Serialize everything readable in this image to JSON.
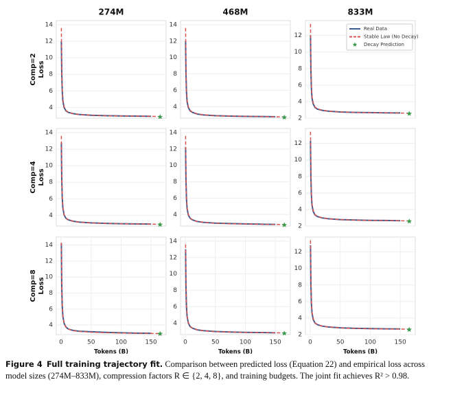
{
  "chart_data": [
    {
      "type": "line",
      "title": "274M",
      "ylabel": [
        "Comp=2",
        "Loss"
      ],
      "xlim": [
        -8,
        175
      ],
      "ylim": [
        2.7,
        14.5
      ],
      "yticks": [
        4,
        6,
        8,
        10,
        12,
        14
      ],
      "grid": true,
      "x": [
        0.5,
        1,
        2,
        3,
        5,
        8,
        12,
        20,
        30,
        50,
        75,
        100,
        125,
        150,
        165
      ],
      "series": [
        {
          "color": "#3a5a92",
          "style": "solid",
          "values": [
            12,
            8.5,
            6,
            4.8,
            4,
            3.6,
            3.4,
            3.25,
            3.15,
            3.05,
            3,
            2.97,
            2.95,
            2.93,
            null
          ]
        },
        {
          "color": "#d9534f",
          "style": "dashed",
          "values": [
            13.6,
            9,
            6.2,
            5,
            4.1,
            3.65,
            3.42,
            3.25,
            3.15,
            3.05,
            3,
            2.97,
            2.94,
            2.92,
            2.9
          ]
        },
        {
          "color": "#3a9b4a",
          "style": "star",
          "values": [
            null,
            null,
            null,
            null,
            null,
            null,
            null,
            null,
            null,
            null,
            null,
            null,
            null,
            null,
            2.85
          ]
        }
      ]
    },
    {
      "type": "line",
      "title": "468M",
      "xlim": [
        -8,
        175
      ],
      "ylim": [
        2.6,
        14.5
      ],
      "yticks": [
        4,
        6,
        8,
        10,
        12,
        14
      ],
      "grid": true,
      "x": [
        0.5,
        1,
        2,
        3,
        5,
        8,
        12,
        20,
        30,
        50,
        75,
        100,
        125,
        150,
        165
      ],
      "series": [
        {
          "color": "#3a5a92",
          "style": "solid",
          "values": [
            12,
            8.3,
            5.8,
            4.6,
            3.9,
            3.5,
            3.3,
            3.1,
            3,
            2.9,
            2.85,
            2.82,
            2.8,
            2.78,
            null
          ]
        },
        {
          "color": "#d9534f",
          "style": "dashed",
          "values": [
            13.6,
            8.8,
            6,
            4.8,
            4,
            3.55,
            3.32,
            3.12,
            3.01,
            2.9,
            2.85,
            2.82,
            2.8,
            2.77,
            2.75
          ]
        },
        {
          "color": "#3a9b4a",
          "style": "star",
          "values": [
            null,
            null,
            null,
            null,
            null,
            null,
            null,
            null,
            null,
            null,
            null,
            null,
            null,
            null,
            2.7
          ]
        }
      ]
    },
    {
      "type": "line",
      "title": "833M",
      "xlim": [
        -8,
        175
      ],
      "ylim": [
        2,
        13.8
      ],
      "yticks": [
        2,
        4,
        6,
        8,
        10,
        12
      ],
      "grid": true,
      "legend": "upper right",
      "x": [
        0.5,
        1,
        2,
        3,
        5,
        8,
        12,
        20,
        30,
        50,
        75,
        100,
        125,
        150,
        165
      ],
      "series": [
        {
          "name": "Real Data",
          "color": "#3a5a92",
          "style": "solid",
          "values": [
            12,
            8,
            5.6,
            4.4,
            3.7,
            3.3,
            3.1,
            2.95,
            2.85,
            2.75,
            2.7,
            2.67,
            2.65,
            2.63,
            null
          ]
        },
        {
          "name": "Stable Law (No Decay)",
          "color": "#d9534f",
          "style": "dashed",
          "values": [
            13.4,
            8.6,
            5.8,
            4.6,
            3.8,
            3.35,
            3.12,
            2.96,
            2.86,
            2.75,
            2.7,
            2.67,
            2.64,
            2.62,
            2.6
          ]
        },
        {
          "name": "Decay Prediction",
          "color": "#3a9b4a",
          "style": "star",
          "values": [
            null,
            null,
            null,
            null,
            null,
            null,
            null,
            null,
            null,
            null,
            null,
            null,
            null,
            null,
            2.55
          ]
        }
      ]
    },
    {
      "type": "line",
      "ylabel": [
        "Comp=4",
        "Loss"
      ],
      "xlim": [
        -8,
        175
      ],
      "ylim": [
        2.7,
        14.5
      ],
      "yticks": [
        4,
        6,
        8,
        10,
        12,
        14
      ],
      "grid": true,
      "x": [
        0.5,
        1,
        2,
        3,
        5,
        8,
        12,
        20,
        30,
        50,
        75,
        100,
        125,
        150,
        165
      ],
      "series": [
        {
          "color": "#3a5a92",
          "style": "solid",
          "values": [
            12.8,
            8.7,
            6.1,
            4.9,
            4.05,
            3.65,
            3.45,
            3.28,
            3.18,
            3.08,
            3.02,
            2.98,
            2.96,
            2.94,
            null
          ]
        },
        {
          "color": "#d9534f",
          "style": "dashed",
          "values": [
            13.6,
            9.1,
            6.3,
            5,
            4.1,
            3.68,
            3.45,
            3.28,
            3.17,
            3.07,
            3.01,
            2.98,
            2.95,
            2.93,
            2.91
          ]
        },
        {
          "color": "#3a9b4a",
          "style": "star",
          "values": [
            null,
            null,
            null,
            null,
            null,
            null,
            null,
            null,
            null,
            null,
            null,
            null,
            null,
            null,
            2.87
          ]
        }
      ]
    },
    {
      "type": "line",
      "xlim": [
        -8,
        175
      ],
      "ylim": [
        2.6,
        14.5
      ],
      "yticks": [
        4,
        6,
        8,
        10,
        12,
        14
      ],
      "grid": true,
      "x": [
        0.5,
        1,
        2,
        3,
        5,
        8,
        12,
        20,
        30,
        50,
        75,
        100,
        125,
        150,
        165
      ],
      "series": [
        {
          "color": "#3a5a92",
          "style": "solid",
          "values": [
            12.2,
            8.4,
            5.9,
            4.7,
            3.95,
            3.55,
            3.35,
            3.15,
            3.05,
            2.95,
            2.9,
            2.86,
            2.83,
            2.8,
            null
          ]
        },
        {
          "color": "#d9534f",
          "style": "dashed",
          "values": [
            13.6,
            8.9,
            6.1,
            4.85,
            4.02,
            3.58,
            3.36,
            3.16,
            3.05,
            2.94,
            2.88,
            2.85,
            2.82,
            2.8,
            2.78
          ]
        },
        {
          "color": "#3a9b4a",
          "style": "star",
          "values": [
            null,
            null,
            null,
            null,
            null,
            null,
            null,
            null,
            null,
            null,
            null,
            null,
            null,
            null,
            2.73
          ]
        }
      ]
    },
    {
      "type": "line",
      "xlim": [
        -8,
        175
      ],
      "ylim": [
        2,
        13.8
      ],
      "yticks": [
        2,
        4,
        6,
        8,
        10,
        12
      ],
      "grid": true,
      "x": [
        0.5,
        1,
        2,
        3,
        5,
        8,
        12,
        20,
        30,
        50,
        75,
        100,
        125,
        150,
        165
      ],
      "series": [
        {
          "color": "#3a5a92",
          "style": "solid",
          "values": [
            12.3,
            8.1,
            5.7,
            4.5,
            3.75,
            3.35,
            3.15,
            2.98,
            2.88,
            2.78,
            2.72,
            2.69,
            2.67,
            2.65,
            null
          ]
        },
        {
          "color": "#d9534f",
          "style": "dashed",
          "values": [
            13.4,
            8.7,
            5.9,
            4.65,
            3.85,
            3.38,
            3.16,
            2.99,
            2.88,
            2.77,
            2.72,
            2.68,
            2.66,
            2.64,
            2.62
          ]
        },
        {
          "color": "#3a9b4a",
          "style": "star",
          "values": [
            null,
            null,
            null,
            null,
            null,
            null,
            null,
            null,
            null,
            null,
            null,
            null,
            null,
            null,
            2.57
          ]
        }
      ]
    },
    {
      "type": "line",
      "ylabel": [
        "Comp=8",
        "Loss"
      ],
      "xlabel": "Tokens (B)",
      "xlim": [
        -8,
        175
      ],
      "ylim": [
        2.8,
        15
      ],
      "yticks": [
        4,
        6,
        8,
        10,
        12,
        14
      ],
      "xticks": [
        0,
        50,
        100,
        150
      ],
      "grid": true,
      "x": [
        0.5,
        1,
        2,
        3,
        5,
        8,
        12,
        20,
        30,
        50,
        75,
        100,
        125,
        150,
        165
      ],
      "series": [
        {
          "color": "#3a5a92",
          "style": "solid",
          "values": [
            14.2,
            9.2,
            6.4,
            5.1,
            4.2,
            3.75,
            3.5,
            3.32,
            3.22,
            3.15,
            3.08,
            3.02,
            2.98,
            2.96,
            null
          ]
        },
        {
          "color": "#d9534f",
          "style": "dashed",
          "values": [
            14.3,
            9.4,
            6.5,
            5.15,
            4.2,
            3.72,
            3.48,
            3.3,
            3.2,
            3.1,
            3.04,
            3,
            2.97,
            2.95,
            2.93
          ]
        },
        {
          "color": "#3a9b4a",
          "style": "star",
          "values": [
            null,
            null,
            null,
            null,
            null,
            null,
            null,
            null,
            null,
            null,
            null,
            null,
            null,
            null,
            2.9
          ]
        }
      ]
    },
    {
      "type": "line",
      "xlabel": "Tokens (B)",
      "xlim": [
        -8,
        175
      ],
      "ylim": [
        2.6,
        14.5
      ],
      "yticks": [
        4,
        6,
        8,
        10,
        12,
        14
      ],
      "xticks": [
        0,
        50,
        100,
        150
      ],
      "grid": true,
      "x": [
        0.5,
        1,
        2,
        3,
        5,
        8,
        12,
        20,
        30,
        50,
        75,
        100,
        125,
        150,
        165
      ],
      "series": [
        {
          "color": "#3a5a92",
          "style": "solid",
          "values": [
            13,
            8.6,
            6,
            4.8,
            4,
            3.58,
            3.38,
            3.18,
            3.08,
            2.98,
            2.92,
            2.88,
            2.85,
            2.82,
            null
          ]
        },
        {
          "color": "#d9534f",
          "style": "dashed",
          "values": [
            13.6,
            9,
            6.2,
            4.9,
            4.05,
            3.6,
            3.38,
            3.18,
            3.07,
            2.96,
            2.9,
            2.87,
            2.84,
            2.82,
            2.8
          ]
        },
        {
          "color": "#3a9b4a",
          "style": "star",
          "values": [
            null,
            null,
            null,
            null,
            null,
            null,
            null,
            null,
            null,
            null,
            null,
            null,
            null,
            null,
            2.75
          ]
        }
      ]
    },
    {
      "type": "line",
      "xlabel": "Tokens (B)",
      "xlim": [
        -8,
        175
      ],
      "ylim": [
        2,
        13.8
      ],
      "yticks": [
        2,
        4,
        6,
        8,
        10,
        12
      ],
      "xticks": [
        0,
        50,
        100,
        150
      ],
      "grid": true,
      "x": [
        0.5,
        1,
        2,
        3,
        5,
        8,
        12,
        20,
        30,
        50,
        75,
        100,
        125,
        150,
        165
      ],
      "series": [
        {
          "color": "#3a5a92",
          "style": "solid",
          "values": [
            12.8,
            8.3,
            5.8,
            4.6,
            3.8,
            3.4,
            3.2,
            3.02,
            2.92,
            2.82,
            2.76,
            2.72,
            2.7,
            2.68,
            null
          ]
        },
        {
          "color": "#d9534f",
          "style": "dashed",
          "values": [
            13.4,
            8.8,
            6,
            4.7,
            3.9,
            3.42,
            3.2,
            3.03,
            2.92,
            2.81,
            2.75,
            2.71,
            2.69,
            2.67,
            2.65
          ]
        },
        {
          "color": "#3a9b4a",
          "style": "star",
          "values": [
            null,
            null,
            null,
            null,
            null,
            null,
            null,
            null,
            null,
            null,
            null,
            null,
            null,
            null,
            2.6
          ]
        }
      ]
    }
  ],
  "caption": {
    "label": "Figure 4",
    "title": "Full training trajectory fit.",
    "text": "Comparison between predicted loss (Equation 22) and empirical loss across model sizes (274M–833M), compression factors R ∈ {2, 4, 8}, and training budgets. The joint fit achieves R² > 0.98."
  }
}
